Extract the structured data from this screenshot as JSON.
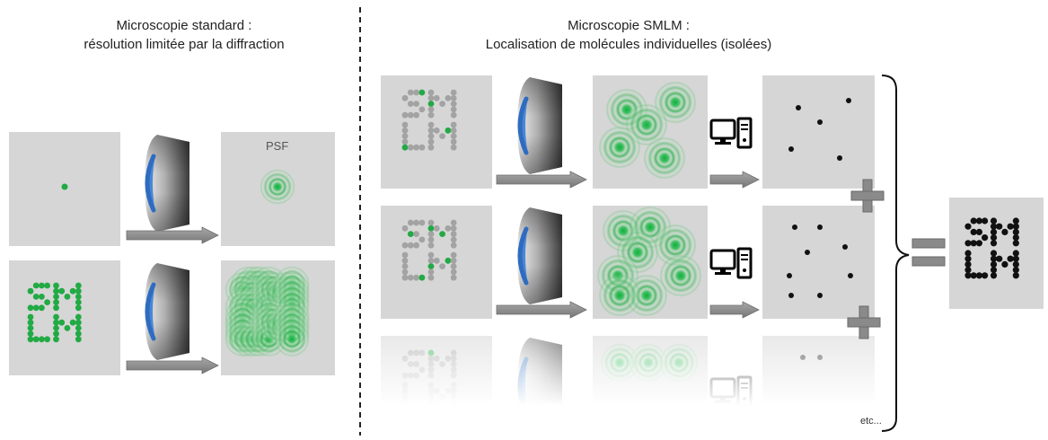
{
  "left_title": {
    "line1": "Microscopie standard :",
    "line2": "résolution limitée par la diffraction"
  },
  "right_title": {
    "line1": "Microscopie SMLM :",
    "line2": "Localisation de molécules individuelles (isolées)"
  },
  "psf_label": "PSF",
  "etc_label": "etc...",
  "result_text": "SMLM",
  "colors": {
    "panel_bg": "#d6d6d6",
    "gray_dot": "#a3a3a3",
    "green_dot": "#22aa44",
    "dark_dot": "#111111",
    "arrow": "#8a8a8a",
    "lens_edge": "#4a86d4"
  },
  "icons": [
    "objective-lens-icon",
    "arrow-right-icon",
    "computer-icon",
    "plus-icon",
    "equals-icon",
    "curly-brace-icon"
  ]
}
